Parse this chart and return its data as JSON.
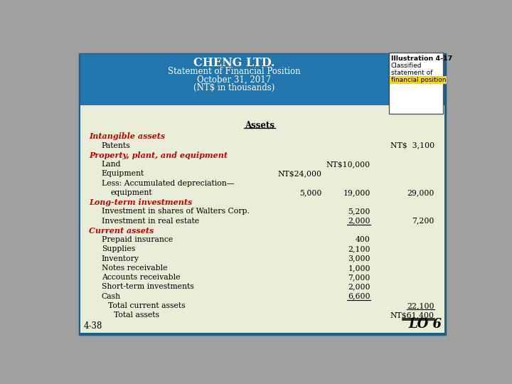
{
  "title1": "CHENG LTD.",
  "title2": "Statement of Financial Position",
  "title3": "October 31, 2017",
  "title4": "(NT$ in thousands)",
  "header_bg": "#2176AE",
  "body_bg": "#E8EDD8",
  "border_color": "#1a5f8a",
  "red_color": "#CC0000",
  "black_color": "#000000",
  "outer_bg": "#A0A0A0",
  "illustration_text1": "Illustration 4-17",
  "illustration_text2": "Classified",
  "illustration_text3": "statement of",
  "illustration_text4": "financial position",
  "section_label": "Assets",
  "rows": [
    {
      "type": "category",
      "label": "Intangible assets",
      "col1": "",
      "col2": "",
      "col3": "",
      "ul1": false,
      "ul2": false,
      "ul3": false
    },
    {
      "type": "item",
      "label": "Patents",
      "col1": "",
      "col2": "",
      "col3": "NT$  3,100",
      "ul1": false,
      "ul2": false,
      "ul3": false
    },
    {
      "type": "category",
      "label": "Property, plant, and equipment",
      "col1": "",
      "col2": "",
      "col3": "",
      "ul1": false,
      "ul2": false,
      "ul3": false
    },
    {
      "type": "item",
      "label": "Land",
      "col1": "",
      "col2": "NT$10,000",
      "col3": "",
      "ul1": false,
      "ul2": false,
      "ul3": false
    },
    {
      "type": "item",
      "label": "Equipment",
      "col1": "NT$24,000",
      "col2": "",
      "col3": "",
      "ul1": false,
      "ul2": false,
      "ul3": false
    },
    {
      "type": "item",
      "label": "Less: Accumulated depreciation—",
      "col1": "",
      "col2": "",
      "col3": "",
      "ul1": false,
      "ul2": false,
      "ul3": false
    },
    {
      "type": "item2",
      "label": "equipment",
      "col1": "5,000",
      "col2": "19,000",
      "col3": "29,000",
      "ul1": false,
      "ul2": false,
      "ul3": false
    },
    {
      "type": "category",
      "label": "Long-term investments",
      "col1": "",
      "col2": "",
      "col3": "",
      "ul1": false,
      "ul2": false,
      "ul3": false
    },
    {
      "type": "item",
      "label": "Investment in shares of Walters Corp.",
      "col1": "",
      "col2": "5,200",
      "col3": "",
      "ul1": false,
      "ul2": false,
      "ul3": false
    },
    {
      "type": "item",
      "label": "Investment in real estate",
      "col1": "",
      "col2": "2,000",
      "col3": "7,200",
      "ul1": false,
      "ul2": true,
      "ul3": false
    },
    {
      "type": "category",
      "label": "Current assets",
      "col1": "",
      "col2": "",
      "col3": "",
      "ul1": false,
      "ul2": false,
      "ul3": false
    },
    {
      "type": "item",
      "label": "Prepaid insurance",
      "col1": "",
      "col2": "400",
      "col3": "",
      "ul1": false,
      "ul2": false,
      "ul3": false
    },
    {
      "type": "item",
      "label": "Supplies",
      "col1": "",
      "col2": "2,100",
      "col3": "",
      "ul1": false,
      "ul2": false,
      "ul3": false
    },
    {
      "type": "item",
      "label": "Inventory",
      "col1": "",
      "col2": "3,000",
      "col3": "",
      "ul1": false,
      "ul2": false,
      "ul3": false
    },
    {
      "type": "item",
      "label": "Notes receivable",
      "col1": "",
      "col2": "1,000",
      "col3": "",
      "ul1": false,
      "ul2": false,
      "ul3": false
    },
    {
      "type": "item",
      "label": "Accounts receivable",
      "col1": "",
      "col2": "7,000",
      "col3": "",
      "ul1": false,
      "ul2": false,
      "ul3": false
    },
    {
      "type": "item",
      "label": "Short-term investments",
      "col1": "",
      "col2": "2,000",
      "col3": "",
      "ul1": false,
      "ul2": false,
      "ul3": false
    },
    {
      "type": "item",
      "label": "Cash",
      "col1": "",
      "col2": "6,600",
      "col3": "",
      "ul1": false,
      "ul2": true,
      "ul3": false
    },
    {
      "type": "subtotal",
      "label": "Total current assets",
      "col1": "",
      "col2": "",
      "col3": "22,100",
      "ul1": false,
      "ul2": false,
      "ul3": false
    },
    {
      "type": "total",
      "label": "Total assets",
      "col1": "",
      "col2": "",
      "col3": "NT$61,400",
      "ul1": false,
      "ul2": false,
      "ul3": true
    }
  ]
}
